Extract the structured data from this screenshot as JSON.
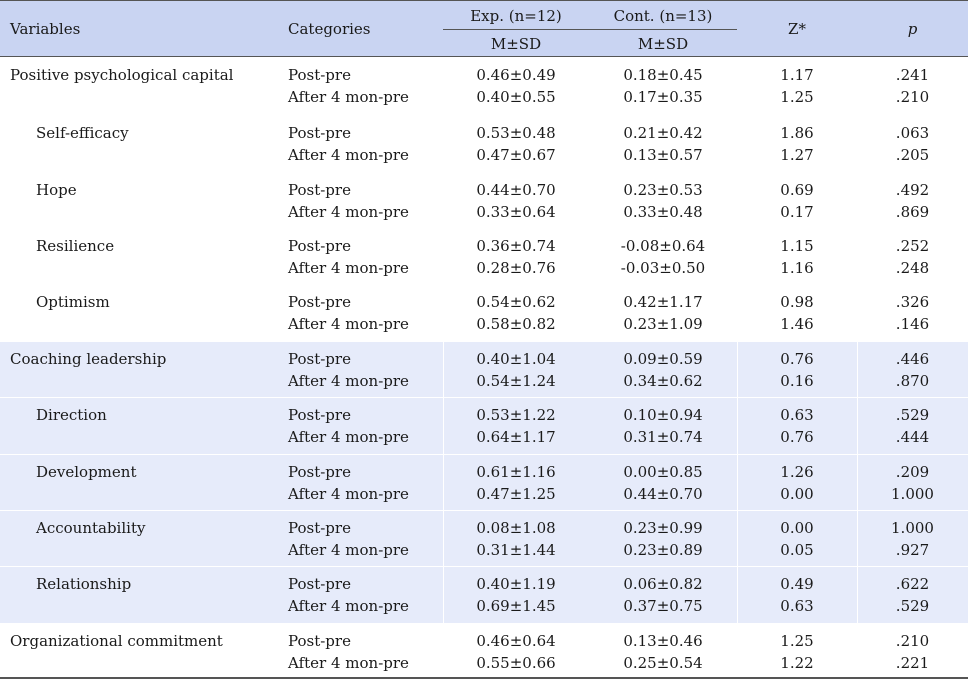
{
  "header": {
    "variables": "Variables",
    "categories": "Categories",
    "exp_group": "Exp. (n=12)",
    "cont_group": "Cont. (n=13)",
    "exp_stat": "M±SD",
    "cont_stat": "M±SD",
    "z": "Z*",
    "p": "p"
  },
  "rows": [
    {
      "variable": "Positive psychological capital",
      "sub": false,
      "band": 0,
      "lines": [
        {
          "category": "Post-pre",
          "exp": "0.46±0.49",
          "cont": "0.18±0.45",
          "z": "1.17",
          "p": ".241"
        },
        {
          "category": "After 4 mon-pre",
          "exp": "0.40±0.55",
          "cont": "0.17±0.35",
          "z": "1.25",
          "p": ".210"
        }
      ]
    },
    {
      "variable": "Self-efficacy",
      "sub": true,
      "band": 0,
      "lines": [
        {
          "category": "Post-pre",
          "exp": "0.53±0.48",
          "cont": "0.21±0.42",
          "z": "1.86",
          "p": ".063"
        },
        {
          "category": "After 4 mon-pre",
          "exp": "0.47±0.67",
          "cont": "0.13±0.57",
          "z": "1.27",
          "p": ".205"
        }
      ]
    },
    {
      "variable": "Hope",
      "sub": true,
      "band": 0,
      "lines": [
        {
          "category": "Post-pre",
          "exp": "0.44±0.70",
          "cont": "0.23±0.53",
          "z": "0.69",
          "p": ".492"
        },
        {
          "category": "After 4 mon-pre",
          "exp": "0.33±0.64",
          "cont": "0.33±0.48",
          "z": "0.17",
          "p": ".869"
        }
      ]
    },
    {
      "variable": "Resilience",
      "sub": true,
      "band": 0,
      "lines": [
        {
          "category": "Post-pre",
          "exp": "0.36±0.74",
          "cont": "-0.08±0.64",
          "z": "1.15",
          "p": ".252"
        },
        {
          "category": "After 4 mon-pre",
          "exp": "0.28±0.76",
          "cont": "-0.03±0.50",
          "z": "1.16",
          "p": ".248"
        }
      ]
    },
    {
      "variable": "Optimism",
      "sub": true,
      "band": 0,
      "lines": [
        {
          "category": "Post-pre",
          "exp": "0.54±0.62",
          "cont": "0.42±1.17",
          "z": "0.98",
          "p": ".326"
        },
        {
          "category": "After 4 mon-pre",
          "exp": "0.58±0.82",
          "cont": "0.23±1.09",
          "z": "1.46",
          "p": ".146"
        }
      ]
    },
    {
      "variable": "Coaching leadership",
      "sub": false,
      "band": 1,
      "lines": [
        {
          "category": "Post-pre",
          "exp": "0.40±1.04",
          "cont": "0.09±0.59",
          "z": "0.76",
          "p": ".446"
        },
        {
          "category": "After 4 mon-pre",
          "exp": "0.54±1.24",
          "cont": "0.34±0.62",
          "z": "0.16",
          "p": ".870"
        }
      ]
    },
    {
      "variable": "Direction",
      "sub": true,
      "band": 1,
      "lines": [
        {
          "category": "Post-pre",
          "exp": "0.53±1.22",
          "cont": "0.10±0.94",
          "z": "0.63",
          "p": ".529"
        },
        {
          "category": "After 4 mon-pre",
          "exp": "0.64±1.17",
          "cont": "0.31±0.74",
          "z": "0.76",
          "p": ".444"
        }
      ]
    },
    {
      "variable": "Development",
      "sub": true,
      "band": 1,
      "lines": [
        {
          "category": "Post-pre",
          "exp": "0.61±1.16",
          "cont": "0.00±0.85",
          "z": "1.26",
          "p": ".209"
        },
        {
          "category": "After 4 mon-pre",
          "exp": "0.47±1.25",
          "cont": "0.44±0.70",
          "z": "0.00",
          "p": "1.000"
        }
      ]
    },
    {
      "variable": "Accountability",
      "sub": true,
      "band": 1,
      "lines": [
        {
          "category": "Post-pre",
          "exp": "0.08±1.08",
          "cont": "0.23±0.99",
          "z": "0.00",
          "p": "1.000"
        },
        {
          "category": "After 4 mon-pre",
          "exp": "0.31±1.44",
          "cont": "0.23±0.89",
          "z": "0.05",
          "p": ".927"
        }
      ]
    },
    {
      "variable": "Relationship",
      "sub": true,
      "band": 1,
      "lines": [
        {
          "category": "Post-pre",
          "exp": "0.40±1.19",
          "cont": "0.06±0.82",
          "z": "0.49",
          "p": ".622"
        },
        {
          "category": "After 4 mon-pre",
          "exp": "0.69±1.45",
          "cont": "0.37±0.75",
          "z": "0.63",
          "p": ".529"
        }
      ]
    },
    {
      "variable": "Organizational commitment",
      "sub": false,
      "band": 0,
      "lines": [
        {
          "category": "Post-pre",
          "exp": "0.46±0.64",
          "cont": "0.13±0.46",
          "z": "1.25",
          "p": ".210"
        },
        {
          "category": "After 4 mon-pre",
          "exp": "0.55±0.66",
          "cont": "0.25±0.54",
          "z": "1.22",
          "p": ".221"
        }
      ]
    }
  ],
  "colors": {
    "header_bg": "#c9d4f2",
    "alt_band_bg": "#e6ebfa"
  }
}
